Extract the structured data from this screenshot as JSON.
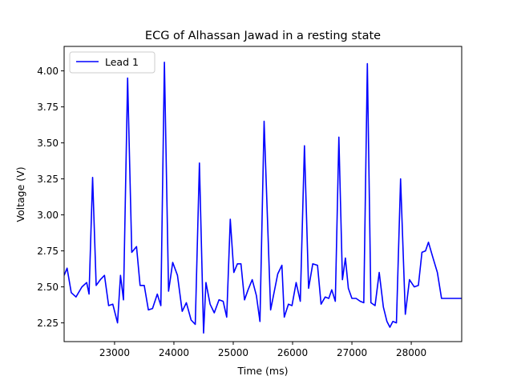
{
  "chart_data": {
    "type": "line",
    "title": "ECG of Alhassan Jawad in a resting state",
    "xlabel": "Time (ms)",
    "ylabel": "Voltage (V)",
    "xlim": [
      22150,
      28850
    ],
    "ylim": [
      2.12,
      4.17
    ],
    "xticks": [
      23000,
      24000,
      25000,
      26000,
      27000,
      28000
    ],
    "yticks": [
      2.25,
      2.5,
      2.75,
      3.0,
      3.25,
      3.5,
      3.75,
      4.0
    ],
    "xtick_labels": [
      "23000",
      "24000",
      "25000",
      "26000",
      "27000",
      "28000"
    ],
    "ytick_labels": [
      "2.25",
      "2.50",
      "2.75",
      "3.00",
      "3.25",
      "3.50",
      "3.75",
      "4.00"
    ],
    "grid": false,
    "legend_position": "upper-left",
    "series": [
      {
        "name": "Lead 1",
        "color": "#0000ff",
        "x": [
          22150,
          22200,
          22270,
          22350,
          22450,
          22530,
          22570,
          22630,
          22690,
          22760,
          22830,
          22900,
          22970,
          23050,
          23100,
          23150,
          23220,
          23290,
          23370,
          23430,
          23500,
          23570,
          23640,
          23720,
          23780,
          23840,
          23910,
          23980,
          24060,
          24140,
          24210,
          24290,
          24360,
          24430,
          24500,
          24540,
          24610,
          24680,
          24760,
          24830,
          24890,
          24950,
          25010,
          25070,
          25130,
          25190,
          25250,
          25320,
          25390,
          25450,
          25520,
          25630,
          25750,
          25820,
          25860,
          25930,
          25990,
          26060,
          26130,
          26200,
          26270,
          26340,
          26420,
          26480,
          26550,
          26610,
          26660,
          26720,
          26780,
          26840,
          26890,
          26940,
          27000,
          27070,
          27140,
          27200,
          27260,
          27320,
          27390,
          27460,
          27530,
          27590,
          27640,
          27690,
          27750,
          27820,
          27900,
          27970,
          28050,
          28120,
          28180,
          28240,
          28290,
          28360,
          28440,
          28510,
          28580,
          28650,
          28720,
          28800,
          28850
        ],
        "values": [
          2.58,
          2.63,
          2.46,
          2.43,
          2.5,
          2.53,
          2.45,
          3.26,
          2.51,
          2.55,
          2.58,
          2.37,
          2.38,
          2.25,
          2.58,
          2.41,
          3.95,
          2.74,
          2.78,
          2.51,
          2.51,
          2.34,
          2.35,
          2.45,
          2.37,
          4.06,
          2.47,
          2.67,
          2.58,
          2.33,
          2.39,
          2.27,
          2.24,
          3.36,
          2.18,
          2.53,
          2.38,
          2.32,
          2.41,
          2.4,
          2.29,
          2.97,
          2.6,
          2.66,
          2.66,
          2.41,
          2.48,
          2.55,
          2.44,
          2.26,
          3.65,
          2.34,
          2.59,
          2.65,
          2.29,
          2.38,
          2.37,
          2.53,
          2.4,
          3.48,
          2.49,
          2.66,
          2.65,
          2.38,
          2.43,
          2.42,
          2.48,
          2.4,
          3.54,
          2.55,
          2.7,
          2.49,
          2.42,
          2.42,
          2.4,
          2.39,
          4.05,
          2.39,
          2.37,
          2.6,
          2.36,
          2.26,
          2.22,
          2.26,
          2.25,
          3.25,
          2.31,
          2.55,
          2.5,
          2.51,
          2.74,
          2.75,
          2.81,
          2.71,
          2.6,
          2.42,
          2.42,
          2.42,
          2.42,
          2.42,
          2.42
        ]
      }
    ]
  }
}
